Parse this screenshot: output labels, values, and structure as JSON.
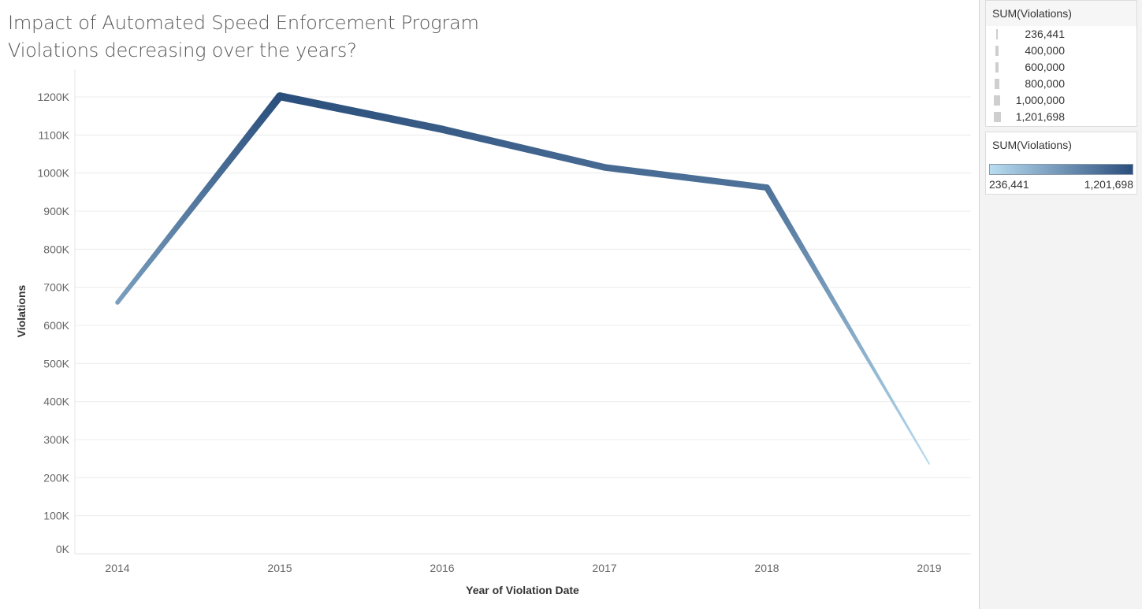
{
  "title": {
    "line1": "Impact of Automated Speed Enforcement Program",
    "line2": "Violations decreasing over the years?"
  },
  "chart_data": {
    "type": "line",
    "x": [
      "2014",
      "2015",
      "2016",
      "2017",
      "2018",
      "2019"
    ],
    "series": [
      {
        "values": [
          660000,
          1201698,
          1115000,
          1015000,
          962000,
          236441
        ]
      }
    ],
    "xlabel": "Year of Violation Date",
    "ylabel": "Violations",
    "ylim": [
      0,
      1200000
    ],
    "yticks": [
      "0K",
      "100K",
      "200K",
      "300K",
      "400K",
      "500K",
      "600K",
      "700K",
      "800K",
      "900K",
      "1000K",
      "1100K",
      "1200K"
    ],
    "ytick_values": [
      0,
      100000,
      200000,
      300000,
      400000,
      500000,
      600000,
      700000,
      800000,
      900000,
      1000000,
      1100000,
      1200000
    ],
    "grid": true,
    "encoding": "line width and color by SUM(Violations)"
  },
  "legend_size": {
    "title": "SUM(Violations)",
    "items": [
      {
        "label": "236,441",
        "value": 236441
      },
      {
        "label": "400,000",
        "value": 400000
      },
      {
        "label": "600,000",
        "value": 600000
      },
      {
        "label": "800,000",
        "value": 800000
      },
      {
        "label": "1,000,000",
        "value": 1000000
      },
      {
        "label": "1,201,698",
        "value": 1201698
      }
    ]
  },
  "legend_color": {
    "title": "SUM(Violations)",
    "min_label": "236,441",
    "max_label": "1,201,698",
    "color_low": "#b8dcf0",
    "color_high": "#2b4f7c"
  }
}
